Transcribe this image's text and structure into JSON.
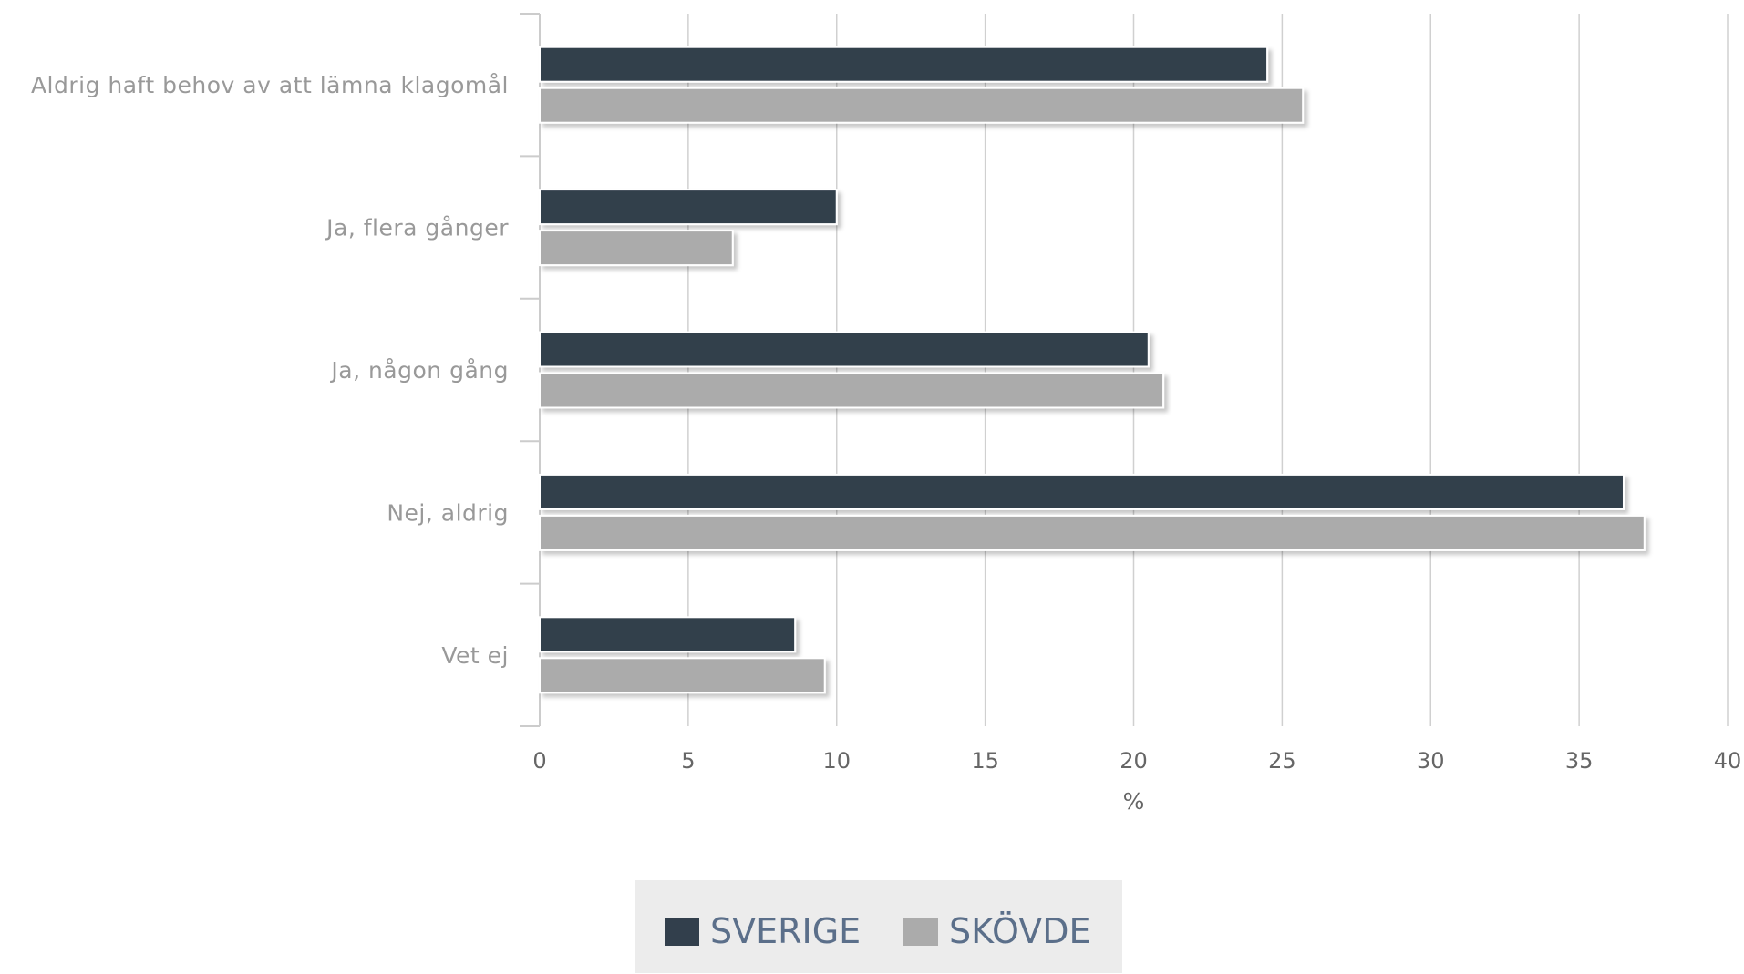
{
  "chart_data": {
    "type": "bar",
    "orientation": "horizontal",
    "categories": [
      "Aldrig haft behov av att lämna klagomål",
      "Ja, flera gånger",
      "Ja, någon gång",
      "Nej, aldrig",
      "Vet ej"
    ],
    "series": [
      {
        "name": "SVERIGE",
        "color": "#323f4c",
        "values": [
          24.5,
          10.0,
          20.5,
          36.5,
          8.6
        ]
      },
      {
        "name": "SKÖVDE",
        "color": "#ababab",
        "values": [
          25.7,
          6.5,
          21.0,
          37.2,
          9.6
        ]
      }
    ],
    "xlabel": "%",
    "ylabel": "",
    "xlim": [
      0,
      40
    ],
    "xticks": [
      "0",
      "5",
      "10",
      "15",
      "20",
      "25",
      "30",
      "35",
      "40"
    ],
    "grid": true,
    "legend_position": "bottom-center",
    "colors": {
      "grid": "#d0d0d0",
      "axis": "#cccccc",
      "legend_background": "#ececec",
      "legend_text": "#5b6f8a",
      "category_text": "#999999",
      "tick_text": "#666666"
    }
  }
}
